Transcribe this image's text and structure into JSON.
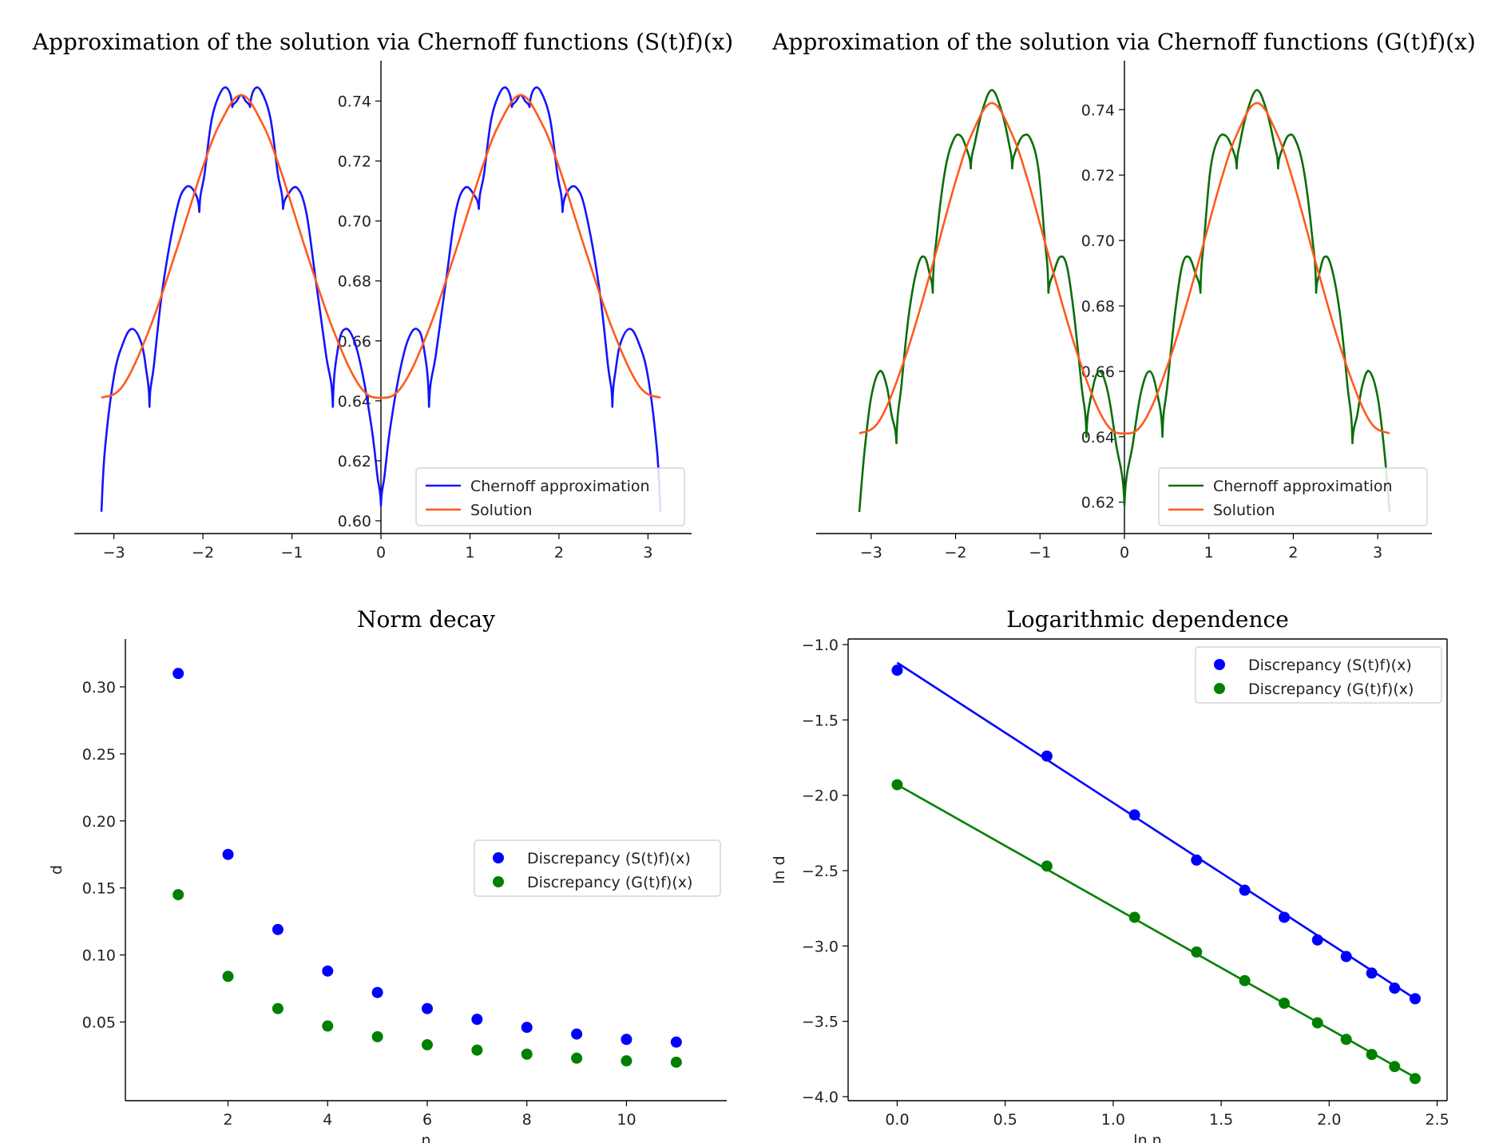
{
  "colors": {
    "blue": "#1414ff",
    "green": "#0a6e0a",
    "orange": "#ff5a1e",
    "scatter_blue": "#0000ff",
    "scatter_green": "#008000"
  },
  "chart_data": [
    {
      "id": "p1",
      "type": "line",
      "title": "Approximation of the solution via Chernoff functions (S(t)f)(x)",
      "xlabel": "",
      "ylabel": "",
      "xlim": [
        -3.14,
        3.14
      ],
      "ylim": [
        0.6,
        0.742
      ],
      "xticks": [
        -3,
        -2,
        -1,
        0,
        1,
        2,
        3
      ],
      "xtick_labels": [
        "−3",
        "−2",
        "−1",
        "0",
        "1",
        "2",
        "3"
      ],
      "yticks": [
        0.6,
        0.62,
        0.64,
        0.66,
        0.68,
        0.7,
        0.72,
        0.74
      ],
      "ytick_labels": [
        "0.60",
        "0.62",
        "0.64",
        "0.66",
        "0.68",
        "0.70",
        "0.72",
        "0.74"
      ],
      "spines": "centered-y",
      "legend": {
        "placement": "lower-right",
        "entries": [
          "Chernoff approximation",
          "Solution"
        ]
      },
      "series": [
        {
          "name": "Chernoff approximation",
          "color": "blue",
          "cusps": [
            -2.6,
            -2.04,
            -1.67,
            -1.47,
            -1.1,
            -0.54,
            0.0,
            0.54,
            1.1,
            1.47,
            1.67,
            2.04,
            2.6
          ],
          "x": [
            -3.14,
            -3.1,
            -3.0,
            -2.9,
            -2.8,
            -2.7,
            -2.64,
            -2.6,
            -2.55,
            -2.45,
            -2.3,
            -2.2,
            -2.1,
            -2.04,
            -1.98,
            -1.9,
            -1.8,
            -1.72,
            -1.67,
            -1.62,
            -1.57,
            -1.52,
            -1.47,
            -1.42,
            -1.34,
            -1.24,
            -1.16,
            -1.1,
            -1.04,
            -0.94,
            -0.84,
            -0.74,
            -0.62,
            -0.54,
            -0.48,
            -0.4,
            -0.3,
            -0.2,
            -0.1,
            -0.04,
            0.0,
            0.04,
            0.1,
            0.2,
            0.3,
            0.4,
            0.48,
            0.54,
            0.62,
            0.74,
            0.84,
            0.94,
            1.04,
            1.1,
            1.16,
            1.24,
            1.34,
            1.42,
            1.47,
            1.52,
            1.57,
            1.62,
            1.67,
            1.72,
            1.8,
            1.9,
            1.98,
            2.04,
            2.1,
            2.2,
            2.3,
            2.45,
            2.55,
            2.6,
            2.64,
            2.7,
            2.8,
            2.9,
            3.0,
            3.1,
            3.14
          ],
          "y": [
            0.603,
            0.624,
            0.648,
            0.659,
            0.664,
            0.66,
            0.651,
            0.638,
            0.652,
            0.678,
            0.703,
            0.711,
            0.71,
            0.703,
            0.716,
            0.734,
            0.743,
            0.744,
            0.738,
            0.74,
            0.742,
            0.74,
            0.738,
            0.744,
            0.743,
            0.734,
            0.716,
            0.704,
            0.709,
            0.711,
            0.703,
            0.682,
            0.656,
            0.638,
            0.658,
            0.664,
            0.66,
            0.648,
            0.63,
            0.615,
            0.605,
            0.615,
            0.63,
            0.648,
            0.66,
            0.664,
            0.658,
            0.638,
            0.656,
            0.682,
            0.703,
            0.711,
            0.709,
            0.704,
            0.716,
            0.734,
            0.743,
            0.744,
            0.738,
            0.74,
            0.742,
            0.74,
            0.738,
            0.744,
            0.743,
            0.734,
            0.716,
            0.703,
            0.71,
            0.711,
            0.703,
            0.678,
            0.652,
            0.638,
            0.651,
            0.66,
            0.664,
            0.659,
            0.648,
            0.624,
            0.603
          ]
        },
        {
          "name": "Solution",
          "color": "orange",
          "x": [
            -3.14,
            -2.9,
            -2.6,
            -2.3,
            -2.0,
            -1.8,
            -1.57,
            -1.34,
            -1.14,
            -0.84,
            -0.54,
            -0.24,
            0.0,
            0.24,
            0.54,
            0.84,
            1.14,
            1.34,
            1.57,
            1.8,
            2.0,
            2.3,
            2.6,
            2.9,
            3.14
          ],
          "y": [
            0.641,
            0.645,
            0.664,
            0.69,
            0.718,
            0.733,
            0.742,
            0.733,
            0.718,
            0.69,
            0.664,
            0.645,
            0.641,
            0.645,
            0.664,
            0.69,
            0.718,
            0.733,
            0.742,
            0.733,
            0.718,
            0.69,
            0.664,
            0.645,
            0.641
          ]
        }
      ]
    },
    {
      "id": "p2",
      "type": "line",
      "title": "Approximation of the solution via Chernoff functions (G(t)f)(x)",
      "xlabel": "",
      "ylabel": "",
      "xlim": [
        -3.14,
        3.14
      ],
      "ylim": [
        0.617,
        0.743
      ],
      "xticks": [
        -3,
        -2,
        -1,
        0,
        1,
        2,
        3
      ],
      "xtick_labels": [
        "−3",
        "−2",
        "−1",
        "0",
        "1",
        "2",
        "3"
      ],
      "yticks": [
        0.62,
        0.64,
        0.66,
        0.68,
        0.7,
        0.72,
        0.74
      ],
      "ytick_labels": [
        "0.62",
        "0.64",
        "0.66",
        "0.68",
        "0.70",
        "0.72",
        "0.74"
      ],
      "spines": "centered-y",
      "legend": {
        "placement": "lower-right",
        "entries": [
          "Chernoff approximation",
          "Solution"
        ]
      },
      "series": [
        {
          "name": "Chernoff approximation",
          "color": "green",
          "cusps": [
            -2.7,
            -2.27,
            -1.82,
            -1.33,
            -0.9,
            -0.45,
            0.0,
            0.45,
            0.9,
            1.33,
            1.82,
            2.27,
            2.7
          ],
          "x": [
            -3.14,
            -3.08,
            -3.0,
            -2.9,
            -2.82,
            -2.76,
            -2.7,
            -2.64,
            -2.55,
            -2.45,
            -2.37,
            -2.31,
            -2.27,
            -2.22,
            -2.12,
            -2.02,
            -1.94,
            -1.87,
            -1.82,
            -1.77,
            -1.68,
            -1.57,
            -1.46,
            -1.37,
            -1.33,
            -1.28,
            -1.2,
            -1.11,
            -1.02,
            -0.95,
            -0.9,
            -0.84,
            -0.76,
            -0.68,
            -0.6,
            -0.51,
            -0.45,
            -0.39,
            -0.3,
            -0.2,
            -0.1,
            0.0,
            0.1,
            0.2,
            0.3,
            0.39,
            0.45,
            0.51,
            0.6,
            0.68,
            0.76,
            0.84,
            0.9,
            0.95,
            1.02,
            1.11,
            1.2,
            1.28,
            1.33,
            1.37,
            1.46,
            1.57,
            1.68,
            1.77,
            1.82,
            1.87,
            1.94,
            2.02,
            2.12,
            2.22,
            2.27,
            2.31,
            2.37,
            2.45,
            2.55,
            2.64,
            2.7,
            2.76,
            2.82,
            2.9,
            3.0,
            3.08,
            3.14
          ],
          "y": [
            0.617,
            0.635,
            0.652,
            0.66,
            0.656,
            0.647,
            0.638,
            0.656,
            0.678,
            0.692,
            0.695,
            0.69,
            0.684,
            0.702,
            0.722,
            0.731,
            0.732,
            0.728,
            0.722,
            0.73,
            0.74,
            0.746,
            0.74,
            0.73,
            0.722,
            0.728,
            0.732,
            0.731,
            0.722,
            0.702,
            0.684,
            0.69,
            0.695,
            0.692,
            0.678,
            0.656,
            0.64,
            0.653,
            0.66,
            0.654,
            0.638,
            0.619,
            0.638,
            0.654,
            0.66,
            0.653,
            0.64,
            0.656,
            0.678,
            0.692,
            0.695,
            0.69,
            0.684,
            0.702,
            0.722,
            0.731,
            0.732,
            0.728,
            0.722,
            0.73,
            0.74,
            0.746,
            0.74,
            0.73,
            0.722,
            0.728,
            0.732,
            0.731,
            0.722,
            0.702,
            0.684,
            0.69,
            0.695,
            0.692,
            0.678,
            0.656,
            0.638,
            0.647,
            0.656,
            0.66,
            0.652,
            0.635,
            0.617
          ]
        },
        {
          "name": "Solution",
          "color": "orange",
          "x": [
            -3.14,
            -2.9,
            -2.6,
            -2.3,
            -2.0,
            -1.8,
            -1.57,
            -1.34,
            -1.14,
            -0.84,
            -0.54,
            -0.24,
            0.0,
            0.24,
            0.54,
            0.84,
            1.14,
            1.34,
            1.57,
            1.8,
            2.0,
            2.3,
            2.6,
            2.9,
            3.14
          ],
          "y": [
            0.641,
            0.645,
            0.664,
            0.69,
            0.718,
            0.733,
            0.742,
            0.733,
            0.718,
            0.69,
            0.664,
            0.645,
            0.641,
            0.645,
            0.664,
            0.69,
            0.718,
            0.733,
            0.742,
            0.733,
            0.718,
            0.69,
            0.664,
            0.645,
            0.641
          ]
        }
      ]
    },
    {
      "id": "p3",
      "type": "scatter",
      "title": "Norm decay",
      "xlabel": "n",
      "ylabel": "d",
      "xlim": [
        0.5,
        11.5
      ],
      "ylim": [
        0.005,
        0.325
      ],
      "xticks": [
        2,
        4,
        6,
        8,
        10
      ],
      "xtick_labels": [
        "2",
        "4",
        "6",
        "8",
        "10"
      ],
      "yticks": [
        0.05,
        0.1,
        0.15,
        0.2,
        0.25,
        0.3
      ],
      "ytick_labels": [
        "0.05",
        "0.10",
        "0.15",
        "0.20",
        "0.25",
        "0.30"
      ],
      "spines": "left-bottom",
      "legend": {
        "placement": "center-right",
        "entries": [
          "Discrepancy (S(t)f)(x)",
          "Discrepancy (G(t)f)(x)"
        ]
      },
      "series": [
        {
          "name": "Discrepancy (S(t)f)(x)",
          "color": "scatter_blue",
          "x": [
            1,
            2,
            3,
            4,
            5,
            6,
            7,
            8,
            9,
            10,
            11
          ],
          "y": [
            0.31,
            0.175,
            0.119,
            0.088,
            0.072,
            0.06,
            0.052,
            0.046,
            0.041,
            0.037,
            0.035
          ]
        },
        {
          "name": "Discrepancy (G(t)f)(x)",
          "color": "scatter_green",
          "x": [
            1,
            2,
            3,
            4,
            5,
            6,
            7,
            8,
            9,
            10,
            11
          ],
          "y": [
            0.145,
            0.084,
            0.06,
            0.047,
            0.039,
            0.033,
            0.029,
            0.026,
            0.023,
            0.021,
            0.02
          ]
        }
      ]
    },
    {
      "id": "p4",
      "type": "scatter",
      "title": "Logarithmic dependence",
      "xlabel": "ln n",
      "ylabel": "ln d",
      "xlim": [
        -0.12,
        2.52
      ],
      "ylim": [
        -4.0,
        -1.0
      ],
      "xticks": [
        0.0,
        0.5,
        1.0,
        1.5,
        2.0,
        2.5
      ],
      "xtick_labels": [
        "0.0",
        "0.5",
        "1.0",
        "1.5",
        "2.0",
        "2.5"
      ],
      "yticks": [
        -4.0,
        -3.5,
        -3.0,
        -2.5,
        -2.0,
        -1.5,
        -1.0
      ],
      "ytick_labels": [
        "−4.0",
        "−3.5",
        "−3.0",
        "−2.5",
        "−2.0",
        "−1.5",
        "−1.0"
      ],
      "spines": "box",
      "legend": {
        "placement": "top-right",
        "entries": [
          "Discrepancy (S(t)f)(x)",
          "Discrepancy (G(t)f)(x)"
        ]
      },
      "series": [
        {
          "name": "Discrepancy (S(t)f)(x)",
          "color": "scatter_blue",
          "x": [
            0.0,
            0.693,
            1.099,
            1.386,
            1.609,
            1.792,
            1.946,
            2.079,
            2.197,
            2.303,
            2.398
          ],
          "y": [
            -1.17,
            -1.74,
            -2.13,
            -2.43,
            -2.63,
            -2.81,
            -2.96,
            -3.07,
            -3.18,
            -3.28,
            -3.35
          ],
          "fit": {
            "intercept": -1.12,
            "slope": -0.93
          }
        },
        {
          "name": "Discrepancy (G(t)f)(x)",
          "color": "scatter_green",
          "x": [
            0.0,
            0.693,
            1.099,
            1.386,
            1.609,
            1.792,
            1.946,
            2.079,
            2.197,
            2.303,
            2.398
          ],
          "y": [
            -1.93,
            -2.47,
            -2.81,
            -3.04,
            -3.23,
            -3.38,
            -3.51,
            -3.62,
            -3.72,
            -3.8,
            -3.88
          ],
          "fit": {
            "intercept": -1.93,
            "slope": -0.81
          }
        }
      ]
    }
  ]
}
